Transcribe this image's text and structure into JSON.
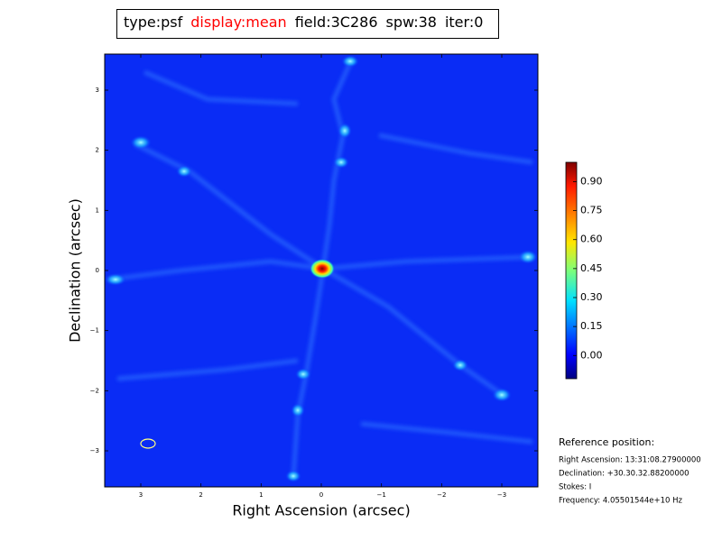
{
  "chart_data": {
    "type": "image",
    "title_parts": [
      {
        "text": "type:psf",
        "color": "#000000"
      },
      {
        "text": "display:mean",
        "color": "#ff0000"
      },
      {
        "text": "field:3C286",
        "color": "#000000"
      },
      {
        "text": "spw:38",
        "color": "#000000"
      },
      {
        "text": "iter:0",
        "color": "#000000"
      }
    ],
    "xlabel": "Right Ascension (arcsec)",
    "ylabel": "Declination (arcsec)",
    "xlim": [
      3.6,
      -3.6
    ],
    "ylim": [
      -3.6,
      3.6
    ],
    "xticks": [
      3,
      2,
      1,
      0,
      {
        "value": -1,
        "label": "−1"
      },
      {
        "value": -2,
        "label": "−2"
      },
      {
        "value": -3,
        "label": "−3"
      }
    ],
    "yticks": [
      {
        "value": -3,
        "label": "−3"
      },
      {
        "value": -2,
        "label": "−2"
      },
      {
        "value": -1,
        "label": "−1"
      },
      0,
      1,
      2,
      3
    ],
    "colorbar": {
      "lim": [
        -0.12,
        1.0
      ],
      "ticks": [
        {
          "value": 0,
          "label": "0.00"
        },
        {
          "value": 0.15,
          "label": "0.15"
        },
        {
          "value": 0.3,
          "label": "0.30"
        },
        {
          "value": 0.45,
          "label": "0.45"
        },
        {
          "value": 0.6,
          "label": "0.60"
        },
        {
          "value": 0.75,
          "label": "0.75"
        },
        {
          "value": 0.9,
          "label": "0.90"
        }
      ]
    },
    "reference": {
      "heading": "Reference position:",
      "lines": [
        "Right Ascension: 13:31:08.27900000",
        "Declination: +30.30.32.88200000",
        "Stokes: I",
        "Frequency: 4.05501544e+10 Hz"
      ]
    }
  }
}
